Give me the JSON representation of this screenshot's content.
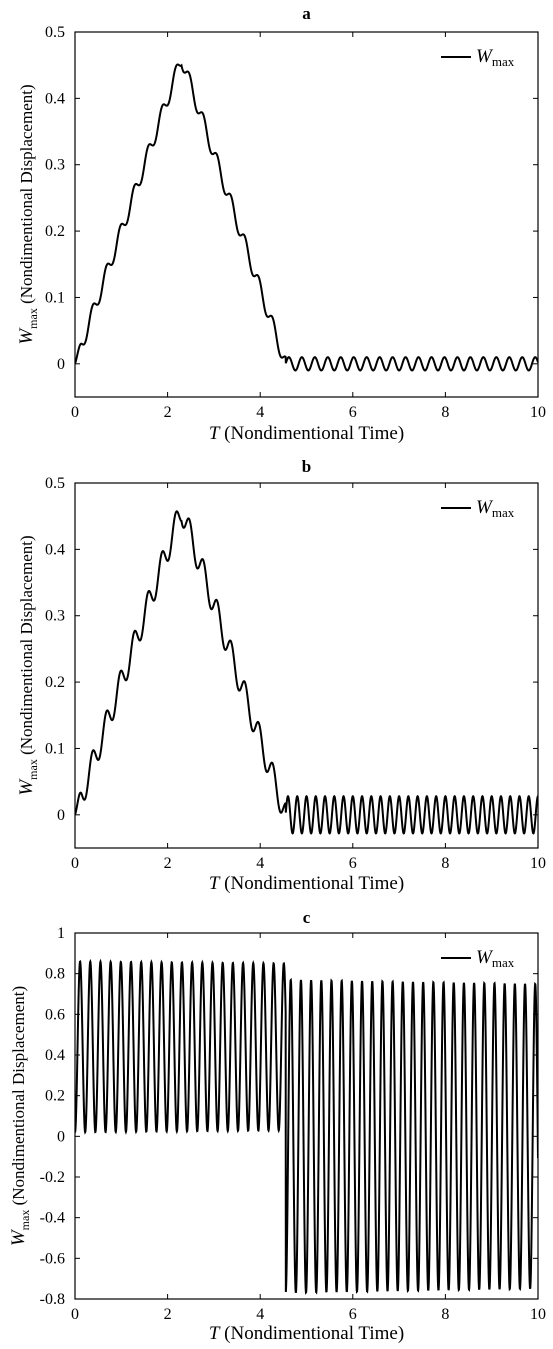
{
  "chart_data": [
    {
      "type": "line",
      "title": "a",
      "xlabel_symbol": "T",
      "xlabel": " (Nondimentional Time)",
      "ylabel_symbol": "W",
      "ylabel_sub": "max",
      "ylabel": " (Nondimentional Displacement)",
      "legend": {
        "symbol": "W",
        "sub": "max",
        "position": "top-right"
      },
      "xlim": [
        0,
        10
      ],
      "ylim": [
        -0.05,
        0.5
      ],
      "xticks": [
        "0",
        "2",
        "4",
        "6",
        "8",
        "10"
      ],
      "yticks": [
        "0",
        "0.1",
        "0.2",
        "0.3",
        "0.4",
        "0.5"
      ],
      "series": [
        {
          "name": "W max",
          "color": "#000000",
          "model": {
            "peak_t": 2.3,
            "peak_w": 0.46,
            "end_t": 4.55,
            "ripple_amp": 0.012,
            "ripple_period": 0.3,
            "tail_amp": 0.01,
            "tail_offset": 0.0,
            "tail_period": 0.28
          }
        }
      ]
    },
    {
      "type": "line",
      "title": "b",
      "xlabel_symbol": "T",
      "xlabel": " (Nondimentional Time)",
      "ylabel_symbol": "W",
      "ylabel_sub": "max",
      "ylabel": " (Nondimentional Displacement)",
      "legend": {
        "symbol": "W",
        "sub": "max",
        "position": "top-right"
      },
      "xlim": [
        0,
        10
      ],
      "ylim": [
        -0.05,
        0.5
      ],
      "xticks": [
        "0",
        "2",
        "4",
        "6",
        "8",
        "10"
      ],
      "yticks": [
        "0",
        "0.1",
        "0.2",
        "0.3",
        "0.4",
        "0.5"
      ],
      "series": [
        {
          "name": "W max",
          "color": "#000000",
          "model": {
            "peak_t": 2.3,
            "peak_w": 0.46,
            "end_t": 4.55,
            "ripple_amp": 0.02,
            "ripple_period": 0.3,
            "tail_amp": 0.028,
            "tail_offset": 0.0,
            "tail_period": 0.2
          }
        }
      ]
    },
    {
      "type": "line",
      "title": "c",
      "xlabel_symbol": "T",
      "xlabel": " (Nondimentional Time)",
      "ylabel_symbol": "W",
      "ylabel_sub": "max",
      "ylabel": " (Nondimentional Displacement)",
      "legend": {
        "symbol": "W",
        "sub": "max",
        "position": "top-right"
      },
      "xlim": [
        0,
        10
      ],
      "ylim": [
        -0.8,
        1
      ],
      "xticks": [
        "0",
        "2",
        "4",
        "6",
        "8",
        "10"
      ],
      "yticks": [
        "-0.8",
        "-0.6",
        "-0.4",
        "-0.2",
        "0",
        "0.2",
        "0.4",
        "0.6",
        "0.8",
        "1"
      ],
      "series": [
        {
          "name": "W max",
          "color": "#000000",
          "model": {
            "phase1_center": 0.44,
            "phase1_amp": 0.42,
            "phase1_decay": 0.005,
            "switch_t": 4.55,
            "phase2_amp": 0.77,
            "phase2_decay": 0.005,
            "period": 0.22
          }
        }
      ]
    }
  ]
}
